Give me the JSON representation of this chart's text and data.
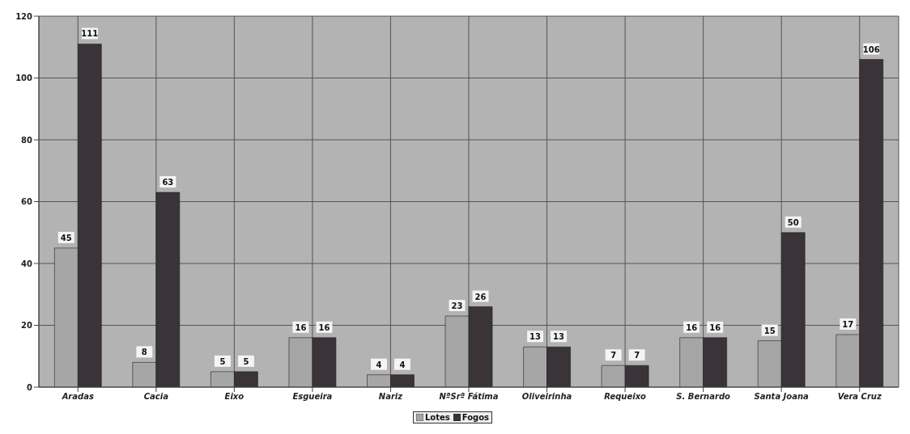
{
  "chart_data": {
    "type": "bar",
    "categories": [
      "Aradas",
      "Cacia",
      "Eixo",
      "Esgueira",
      "Nariz",
      "NªSrª Fátima",
      "Oliveirinha",
      "Requeixo",
      "S. Bernardo",
      "Santa Joana",
      "Vera Cruz"
    ],
    "series": [
      {
        "name": "Lotes",
        "color": "#a6a6a6",
        "values": [
          45,
          8,
          5,
          16,
          4,
          23,
          13,
          7,
          16,
          15,
          17
        ]
      },
      {
        "name": "Fogos",
        "color": "#3a3337",
        "values": [
          111,
          63,
          5,
          16,
          4,
          26,
          13,
          7,
          16,
          50,
          106
        ]
      }
    ],
    "ylim": [
      0,
      120
    ],
    "yticks": [
      0,
      20,
      40,
      60,
      80,
      100,
      120
    ],
    "grid": true,
    "legend": "bottom",
    "data_labels": true
  }
}
